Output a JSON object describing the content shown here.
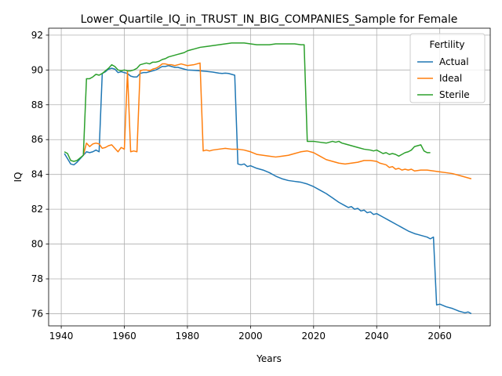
{
  "chart_data": {
    "type": "line",
    "title": "Lower_Quartile_IQ_in_TRUST_IN_BIG_COMPANIES_Sample for Female",
    "xlabel": "Years",
    "ylabel": "IQ",
    "xlim": [
      1936,
      2076
    ],
    "ylim": [
      75.3,
      92.4
    ],
    "xticks": [
      1940,
      1960,
      1980,
      2000,
      2020,
      2040,
      2060
    ],
    "yticks": [
      76,
      78,
      80,
      82,
      84,
      86,
      88,
      90,
      92
    ],
    "grid": true,
    "legend": {
      "title": "Fertility",
      "placement": "top-right"
    },
    "series": [
      {
        "name": "Actual",
        "color": "#1f77b4",
        "points": [
          [
            1941,
            85.2
          ],
          [
            1942,
            84.9
          ],
          [
            1943,
            84.6
          ],
          [
            1944,
            84.55
          ],
          [
            1945,
            84.7
          ],
          [
            1946,
            84.9
          ],
          [
            1947,
            85.1
          ],
          [
            1948,
            85.3
          ],
          [
            1949,
            85.25
          ],
          [
            1950,
            85.3
          ],
          [
            1951,
            85.4
          ],
          [
            1952,
            85.3
          ],
          [
            1953,
            89.8
          ],
          [
            1954,
            89.9
          ],
          [
            1955,
            90.05
          ],
          [
            1956,
            90.1
          ],
          [
            1957,
            90.05
          ],
          [
            1958,
            89.85
          ],
          [
            1959,
            89.9
          ],
          [
            1960,
            89.85
          ],
          [
            1961,
            89.8
          ],
          [
            1962,
            89.65
          ],
          [
            1963,
            89.6
          ],
          [
            1964,
            89.6
          ],
          [
            1965,
            89.8
          ],
          [
            1966,
            89.85
          ],
          [
            1967,
            89.85
          ],
          [
            1968,
            89.9
          ],
          [
            1969,
            89.95
          ],
          [
            1970,
            90.0
          ],
          [
            1971,
            90.1
          ],
          [
            1972,
            90.2
          ],
          [
            1973,
            90.2
          ],
          [
            1974,
            90.25
          ],
          [
            1975,
            90.2
          ],
          [
            1976,
            90.15
          ],
          [
            1977,
            90.15
          ],
          [
            1978,
            90.1
          ],
          [
            1979,
            90.05
          ],
          [
            1980,
            90.0
          ],
          [
            1982,
            89.98
          ],
          [
            1984,
            89.95
          ],
          [
            1986,
            89.92
          ],
          [
            1988,
            89.88
          ],
          [
            1990,
            89.82
          ],
          [
            1991,
            89.8
          ],
          [
            1992,
            89.82
          ],
          [
            1993,
            89.8
          ],
          [
            1994,
            89.75
          ],
          [
            1995,
            89.7
          ],
          [
            1996,
            84.6
          ],
          [
            1997,
            84.55
          ],
          [
            1998,
            84.6
          ],
          [
            1999,
            84.45
          ],
          [
            2000,
            84.5
          ],
          [
            2002,
            84.35
          ],
          [
            2004,
            84.25
          ],
          [
            2006,
            84.1
          ],
          [
            2008,
            83.9
          ],
          [
            2010,
            83.75
          ],
          [
            2012,
            83.65
          ],
          [
            2014,
            83.6
          ],
          [
            2016,
            83.55
          ],
          [
            2018,
            83.45
          ],
          [
            2020,
            83.3
          ],
          [
            2022,
            83.1
          ],
          [
            2024,
            82.9
          ],
          [
            2026,
            82.65
          ],
          [
            2028,
            82.4
          ],
          [
            2030,
            82.2
          ],
          [
            2031,
            82.1
          ],
          [
            2032,
            82.15
          ],
          [
            2033,
            82.0
          ],
          [
            2034,
            82.05
          ],
          [
            2035,
            81.9
          ],
          [
            2036,
            81.95
          ],
          [
            2037,
            81.8
          ],
          [
            2038,
            81.85
          ],
          [
            2039,
            81.7
          ],
          [
            2040,
            81.75
          ],
          [
            2042,
            81.55
          ],
          [
            2044,
            81.35
          ],
          [
            2046,
            81.15
          ],
          [
            2048,
            80.95
          ],
          [
            2050,
            80.75
          ],
          [
            2052,
            80.6
          ],
          [
            2053,
            80.55
          ],
          [
            2054,
            80.5
          ],
          [
            2055,
            80.45
          ],
          [
            2056,
            80.4
          ],
          [
            2057,
            80.3
          ],
          [
            2058,
            80.4
          ],
          [
            2059,
            76.5
          ],
          [
            2060,
            76.55
          ],
          [
            2062,
            76.4
          ],
          [
            2064,
            76.3
          ],
          [
            2066,
            76.15
          ],
          [
            2068,
            76.05
          ],
          [
            2069,
            76.1
          ],
          [
            2070,
            76.0
          ]
        ]
      },
      {
        "name": "Ideal",
        "color": "#ff7f0e",
        "points": [
          [
            1947,
            85.1
          ],
          [
            1948,
            85.8
          ],
          [
            1949,
            85.6
          ],
          [
            1950,
            85.75
          ],
          [
            1951,
            85.8
          ],
          [
            1952,
            85.75
          ],
          [
            1953,
            85.5
          ],
          [
            1954,
            85.55
          ],
          [
            1955,
            85.65
          ],
          [
            1956,
            85.7
          ],
          [
            1957,
            85.5
          ],
          [
            1958,
            85.3
          ],
          [
            1959,
            85.55
          ],
          [
            1960,
            85.45
          ],
          [
            1961,
            89.9
          ],
          [
            1962,
            85.3
          ],
          [
            1963,
            85.35
          ],
          [
            1964,
            85.3
          ],
          [
            1965,
            89.95
          ],
          [
            1966,
            90.0
          ],
          [
            1967,
            90.0
          ],
          [
            1968,
            89.95
          ],
          [
            1969,
            90.05
          ],
          [
            1970,
            90.1
          ],
          [
            1971,
            90.2
          ],
          [
            1972,
            90.35
          ],
          [
            1973,
            90.35
          ],
          [
            1974,
            90.3
          ],
          [
            1975,
            90.3
          ],
          [
            1976,
            90.25
          ],
          [
            1977,
            90.3
          ],
          [
            1978,
            90.35
          ],
          [
            1979,
            90.3
          ],
          [
            1980,
            90.25
          ],
          [
            1982,
            90.3
          ],
          [
            1984,
            90.4
          ],
          [
            1985,
            85.35
          ],
          [
            1986,
            85.4
          ],
          [
            1987,
            85.35
          ],
          [
            1988,
            85.4
          ],
          [
            1990,
            85.45
          ],
          [
            1992,
            85.5
          ],
          [
            1994,
            85.45
          ],
          [
            1996,
            85.45
          ],
          [
            1998,
            85.4
          ],
          [
            2000,
            85.3
          ],
          [
            2002,
            85.15
          ],
          [
            2004,
            85.1
          ],
          [
            2006,
            85.05
          ],
          [
            2008,
            85.0
          ],
          [
            2010,
            85.05
          ],
          [
            2012,
            85.1
          ],
          [
            2014,
            85.2
          ],
          [
            2016,
            85.3
          ],
          [
            2018,
            85.35
          ],
          [
            2020,
            85.25
          ],
          [
            2022,
            85.05
          ],
          [
            2024,
            84.85
          ],
          [
            2026,
            84.75
          ],
          [
            2028,
            84.65
          ],
          [
            2030,
            84.6
          ],
          [
            2032,
            84.65
          ],
          [
            2034,
            84.7
          ],
          [
            2036,
            84.8
          ],
          [
            2038,
            84.8
          ],
          [
            2040,
            84.75
          ],
          [
            2041,
            84.65
          ],
          [
            2042,
            84.6
          ],
          [
            2043,
            84.55
          ],
          [
            2044,
            84.4
          ],
          [
            2045,
            84.45
          ],
          [
            2046,
            84.3
          ],
          [
            2047,
            84.35
          ],
          [
            2048,
            84.25
          ],
          [
            2049,
            84.3
          ],
          [
            2050,
            84.25
          ],
          [
            2051,
            84.3
          ],
          [
            2052,
            84.2
          ],
          [
            2054,
            84.25
          ],
          [
            2056,
            84.25
          ],
          [
            2058,
            84.2
          ],
          [
            2060,
            84.15
          ],
          [
            2062,
            84.1
          ],
          [
            2064,
            84.05
          ],
          [
            2066,
            83.95
          ],
          [
            2068,
            83.85
          ],
          [
            2070,
            83.75
          ]
        ]
      },
      {
        "name": "Sterile",
        "color": "#2ca02c",
        "points": [
          [
            1941,
            85.3
          ],
          [
            1942,
            85.2
          ],
          [
            1943,
            84.8
          ],
          [
            1944,
            84.75
          ],
          [
            1945,
            84.8
          ],
          [
            1946,
            84.95
          ],
          [
            1947,
            85.1
          ],
          [
            1948,
            89.5
          ],
          [
            1949,
            89.5
          ],
          [
            1950,
            89.6
          ],
          [
            1951,
            89.75
          ],
          [
            1952,
            89.7
          ],
          [
            1953,
            89.8
          ],
          [
            1954,
            89.95
          ],
          [
            1955,
            90.1
          ],
          [
            1956,
            90.3
          ],
          [
            1957,
            90.2
          ],
          [
            1958,
            90.0
          ],
          [
            1959,
            89.95
          ],
          [
            1960,
            90.0
          ],
          [
            1961,
            89.95
          ],
          [
            1962,
            89.95
          ],
          [
            1963,
            90.0
          ],
          [
            1964,
            90.1
          ],
          [
            1965,
            90.3
          ],
          [
            1966,
            90.35
          ],
          [
            1967,
            90.4
          ],
          [
            1968,
            90.35
          ],
          [
            1969,
            90.45
          ],
          [
            1970,
            90.45
          ],
          [
            1971,
            90.5
          ],
          [
            1972,
            90.6
          ],
          [
            1973,
            90.65
          ],
          [
            1974,
            90.75
          ],
          [
            1975,
            90.8
          ],
          [
            1976,
            90.85
          ],
          [
            1977,
            90.9
          ],
          [
            1978,
            90.95
          ],
          [
            1979,
            91.0
          ],
          [
            1980,
            91.1
          ],
          [
            1981,
            91.15
          ],
          [
            1982,
            91.2
          ],
          [
            1984,
            91.3
          ],
          [
            1986,
            91.35
          ],
          [
            1988,
            91.4
          ],
          [
            1990,
            91.45
          ],
          [
            1992,
            91.5
          ],
          [
            1994,
            91.55
          ],
          [
            1996,
            91.55
          ],
          [
            1998,
            91.55
          ],
          [
            2000,
            91.5
          ],
          [
            2002,
            91.45
          ],
          [
            2004,
            91.45
          ],
          [
            2006,
            91.45
          ],
          [
            2008,
            91.5
          ],
          [
            2010,
            91.5
          ],
          [
            2012,
            91.5
          ],
          [
            2014,
            91.5
          ],
          [
            2016,
            91.45
          ],
          [
            2017,
            91.45
          ],
          [
            2018,
            85.9
          ],
          [
            2020,
            85.9
          ],
          [
            2022,
            85.85
          ],
          [
            2024,
            85.8
          ],
          [
            2025,
            85.85
          ],
          [
            2026,
            85.9
          ],
          [
            2027,
            85.85
          ],
          [
            2028,
            85.9
          ],
          [
            2029,
            85.8
          ],
          [
            2030,
            85.75
          ],
          [
            2032,
            85.65
          ],
          [
            2034,
            85.55
          ],
          [
            2036,
            85.45
          ],
          [
            2038,
            85.4
          ],
          [
            2039,
            85.35
          ],
          [
            2040,
            85.4
          ],
          [
            2041,
            85.3
          ],
          [
            2042,
            85.2
          ],
          [
            2043,
            85.25
          ],
          [
            2044,
            85.15
          ],
          [
            2045,
            85.2
          ],
          [
            2046,
            85.15
          ],
          [
            2047,
            85.05
          ],
          [
            2048,
            85.15
          ],
          [
            2049,
            85.25
          ],
          [
            2050,
            85.3
          ],
          [
            2051,
            85.4
          ],
          [
            2052,
            85.6
          ],
          [
            2053,
            85.65
          ],
          [
            2054,
            85.7
          ],
          [
            2055,
            85.35
          ],
          [
            2056,
            85.25
          ],
          [
            2057,
            85.25
          ]
        ]
      }
    ]
  }
}
